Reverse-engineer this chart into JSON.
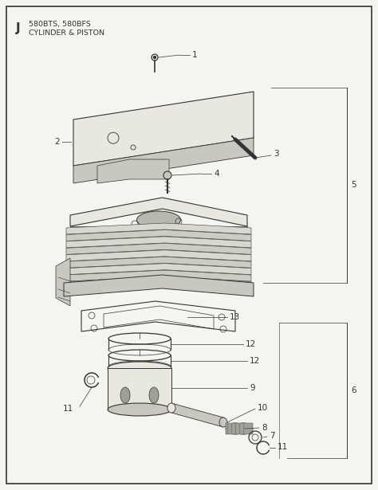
{
  "title_letter": "J",
  "title_line1": "580BTS, 580BFS",
  "title_line2": "CYLINDER & PISTON",
  "bg_color": "#f5f5f0",
  "border_color": "#333333",
  "line_color": "#333333",
  "gray_fill": "#e8e8e0",
  "dark_gray": "#a0a098",
  "med_gray": "#c8c8c0"
}
